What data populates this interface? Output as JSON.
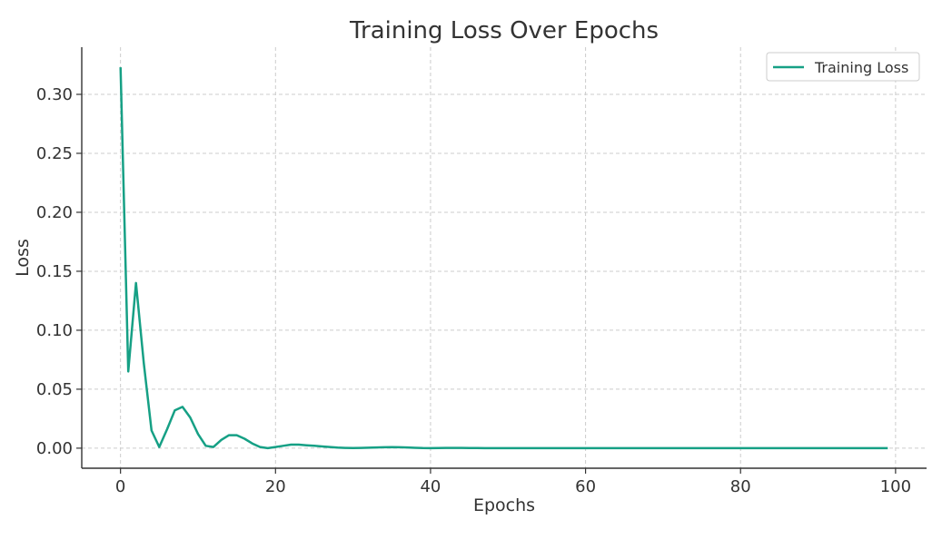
{
  "chart_data": {
    "type": "line",
    "title": "Training Loss Over Epochs",
    "xlabel": "Epochs",
    "ylabel": "Loss",
    "xlim": [
      -5,
      104
    ],
    "ylim": [
      -0.017,
      0.34
    ],
    "xticks": [
      0,
      20,
      40,
      60,
      80,
      100
    ],
    "yticks": [
      0.0,
      0.05,
      0.1,
      0.15,
      0.2,
      0.25,
      0.3
    ],
    "xtick_labels": [
      "0",
      "20",
      "40",
      "60",
      "80",
      "100"
    ],
    "ytick_labels": [
      "0.00",
      "0.05",
      "0.10",
      "0.15",
      "0.20",
      "0.25",
      "0.30"
    ],
    "grid": true,
    "legend_position": "top-right",
    "series": [
      {
        "name": "Training Loss",
        "color": "#16a085",
        "x": [
          0,
          1,
          2,
          3,
          4,
          5,
          6,
          7,
          8,
          9,
          10,
          11,
          12,
          13,
          14,
          15,
          16,
          17,
          18,
          19,
          20,
          21,
          22,
          23,
          24,
          25,
          26,
          27,
          28,
          29,
          30,
          31,
          32,
          33,
          34,
          35,
          36,
          37,
          38,
          39,
          40,
          41,
          42,
          43,
          44,
          45,
          46,
          47,
          48,
          49,
          50,
          51,
          52,
          53,
          54,
          55,
          56,
          57,
          58,
          59,
          60,
          61,
          62,
          63,
          64,
          65,
          66,
          67,
          68,
          69,
          70,
          71,
          72,
          73,
          74,
          75,
          76,
          77,
          78,
          79,
          80,
          81,
          82,
          83,
          84,
          85,
          86,
          87,
          88,
          89,
          90,
          91,
          92,
          93,
          94,
          95,
          96,
          97,
          98,
          99
        ],
        "values": [
          0.323,
          0.065,
          0.14,
          0.072,
          0.015,
          0.001,
          0.016,
          0.032,
          0.035,
          0.026,
          0.012,
          0.002,
          0.001,
          0.007,
          0.011,
          0.011,
          0.008,
          0.004,
          0.001,
          0.0,
          0.001,
          0.002,
          0.003,
          0.003,
          0.0025,
          0.002,
          0.0015,
          0.001,
          0.0005,
          0.0002,
          0.0001,
          0.0002,
          0.0004,
          0.0006,
          0.0008,
          0.0009,
          0.0008,
          0.0006,
          0.0003,
          0.0001,
          0.0,
          0.0001,
          0.0002,
          0.0002,
          0.0002,
          0.0001,
          0.0001,
          0.0,
          0.0,
          0.0,
          0.0,
          0.0,
          0.0,
          0.0,
          0.0,
          0.0,
          0.0,
          0.0,
          0.0,
          0.0,
          0.0,
          0.0,
          0.0,
          0.0,
          0.0,
          0.0,
          0.0,
          0.0,
          0.0,
          0.0,
          0.0,
          0.0,
          0.0,
          0.0,
          0.0,
          0.0,
          0.0,
          0.0,
          0.0,
          0.0,
          0.0,
          0.0,
          0.0,
          0.0,
          0.0,
          0.0,
          0.0,
          0.0,
          0.0,
          0.0,
          0.0,
          0.0,
          0.0,
          0.0,
          0.0,
          0.0,
          0.0,
          0.0,
          0.0,
          0.0
        ]
      }
    ]
  }
}
